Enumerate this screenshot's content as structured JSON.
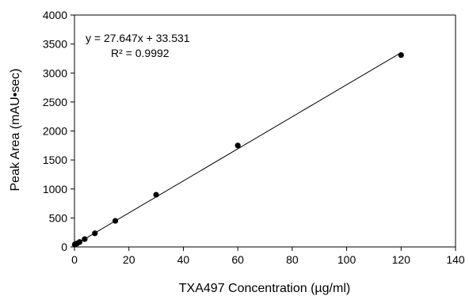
{
  "chart_data": {
    "type": "scatter",
    "xlabel": "TXA497  Concentration (µg/ml)",
    "ylabel": "Peak Area  (mAU•sec)",
    "xlim": [
      0,
      140
    ],
    "ylim": [
      0,
      4000
    ],
    "xticks": [
      0,
      20,
      40,
      60,
      80,
      100,
      120,
      140
    ],
    "yticks": [
      0,
      500,
      1000,
      1500,
      2000,
      2500,
      3000,
      3500,
      4000
    ],
    "grid": false,
    "series": [
      {
        "points": [
          {
            "x": 0.12,
            "y": 40
          },
          {
            "x": 0.24,
            "y": 45
          },
          {
            "x": 0.47,
            "y": 50
          },
          {
            "x": 0.94,
            "y": 60
          },
          {
            "x": 1.88,
            "y": 85
          },
          {
            "x": 3.75,
            "y": 135
          },
          {
            "x": 7.5,
            "y": 235
          },
          {
            "x": 15,
            "y": 450
          },
          {
            "x": 30,
            "y": 900
          },
          {
            "x": 60,
            "y": 1750
          },
          {
            "x": 120,
            "y": 3310
          }
        ],
        "color": "#000000"
      }
    ],
    "trendline": {
      "slope": 27.647,
      "intercept": 33.531,
      "x_range": [
        0,
        120
      ],
      "color": "#000000"
    },
    "annotations": {
      "equation": "y = 27.647x + 33.531",
      "r_squared": "R² = 0.9992"
    }
  }
}
